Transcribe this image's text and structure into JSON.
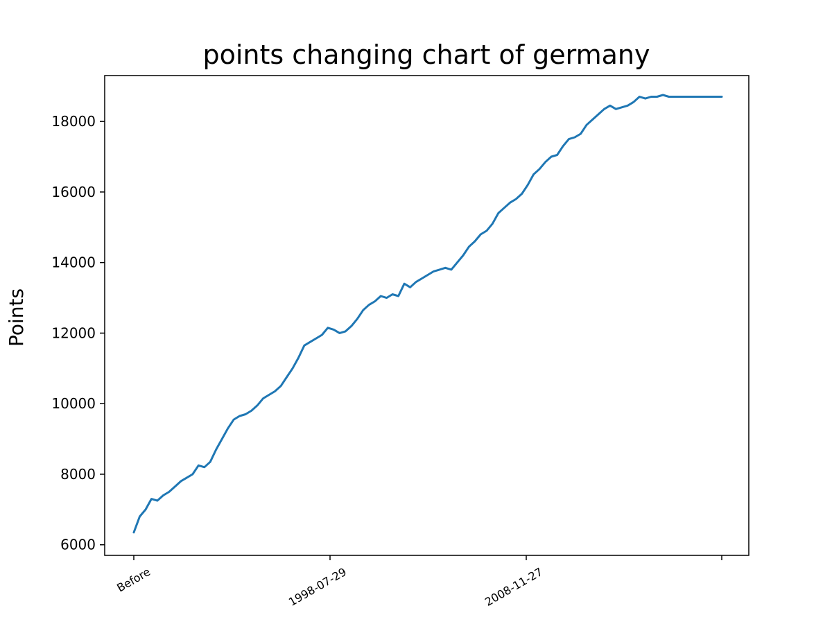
{
  "chart_data": {
    "type": "line",
    "title": "points changing chart of germany",
    "xlabel": "",
    "ylabel": "Points",
    "ylim": [
      5700,
      19300
    ],
    "yticks": [
      6000,
      8000,
      10000,
      12000,
      14000,
      16000,
      18000
    ],
    "xtick_labels": [
      "Before",
      "1998-07-29",
      "2008-11-27",
      ""
    ],
    "grid": false,
    "line_color": "#1f77b4",
    "series": [
      {
        "x": [
          0,
          0.03,
          0.06,
          0.09,
          0.12,
          0.15,
          0.18,
          0.21,
          0.24,
          0.27,
          0.3,
          0.33,
          0.36,
          0.39,
          0.42,
          0.45,
          0.48,
          0.51,
          0.54,
          0.57,
          0.6,
          0.63,
          0.66,
          0.69,
          0.72,
          0.75,
          0.78,
          0.81,
          0.84,
          0.87,
          0.9,
          0.93,
          0.96,
          0.99,
          1.02,
          1.05,
          1.08,
          1.11,
          1.14,
          1.17,
          1.2,
          1.23,
          1.26,
          1.29,
          1.32,
          1.35,
          1.38,
          1.41,
          1.44,
          1.47,
          1.5,
          1.53,
          1.56,
          1.59,
          1.62,
          1.65,
          1.68,
          1.71,
          1.74,
          1.77,
          1.8,
          1.83,
          1.86,
          1.89,
          1.92,
          1.95,
          1.98,
          2.01,
          2.04,
          2.07,
          2.1,
          2.13,
          2.16,
          2.19,
          2.22,
          2.25,
          2.28,
          2.31,
          2.34,
          2.37,
          2.4,
          2.43,
          2.46,
          2.49,
          2.52,
          2.55,
          2.58,
          2.61,
          2.64,
          2.67,
          2.7,
          2.73,
          2.76,
          2.79,
          2.82,
          2.85,
          2.88,
          2.91,
          2.94,
          2.97,
          3.0
        ],
        "y": [
          6350,
          6800,
          7000,
          7300,
          7250,
          7400,
          7500,
          7650,
          7800,
          7900,
          8000,
          8250,
          8200,
          8350,
          8700,
          9000,
          9300,
          9550,
          9650,
          9700,
          9800,
          9950,
          10150,
          10250,
          10350,
          10500,
          10750,
          11000,
          11300,
          11650,
          11750,
          11850,
          11950,
          12150,
          12100,
          12000,
          12050,
          12200,
          12400,
          12650,
          12800,
          12900,
          13050,
          13000,
          13100,
          13050,
          13400,
          13300,
          13450,
          13550,
          13650,
          13750,
          13800,
          13850,
          13800,
          14000,
          14200,
          14450,
          14600,
          14800,
          14900,
          15100,
          15400,
          15550,
          15700,
          15800,
          15950,
          16200,
          16500,
          16650,
          16850,
          17000,
          17050,
          17300,
          17500,
          17550,
          17650,
          17900,
          18050,
          18200,
          18350,
          18450,
          18350,
          18400,
          18450,
          18550,
          18700,
          18650,
          18700,
          18700,
          18750,
          18700,
          18700,
          18700,
          18700,
          18700,
          18700,
          18700,
          18700,
          18700,
          18700
        ]
      }
    ]
  }
}
